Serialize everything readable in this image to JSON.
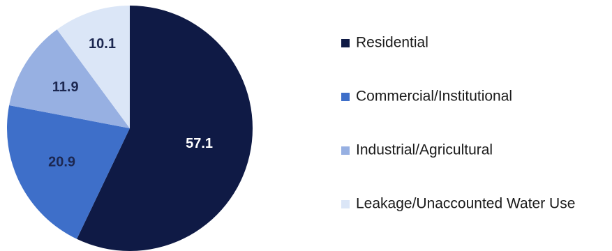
{
  "chart_data": {
    "type": "pie",
    "title": "",
    "start_angle_deg": 0,
    "direction": "clockwise",
    "legend_position": "right",
    "slices": [
      {
        "label": "Residential",
        "value": 57.1,
        "value_label": "57.1",
        "color": "#0f1a45",
        "label_color": "#ffffff"
      },
      {
        "label": "Commercial/Institutional",
        "value": 20.9,
        "value_label": "20.9",
        "color": "#3e6fc9",
        "label_color": "#1c2750"
      },
      {
        "label": "Industrial/Agricultural",
        "value": 11.9,
        "value_label": "11.9",
        "color": "#97b0e2",
        "label_color": "#1c2750"
      },
      {
        "label": "Leakage/Unaccounted Water Use",
        "value": 10.1,
        "value_label": "10.1",
        "color": "#dbe6f7",
        "label_color": "#1c2750"
      }
    ]
  }
}
